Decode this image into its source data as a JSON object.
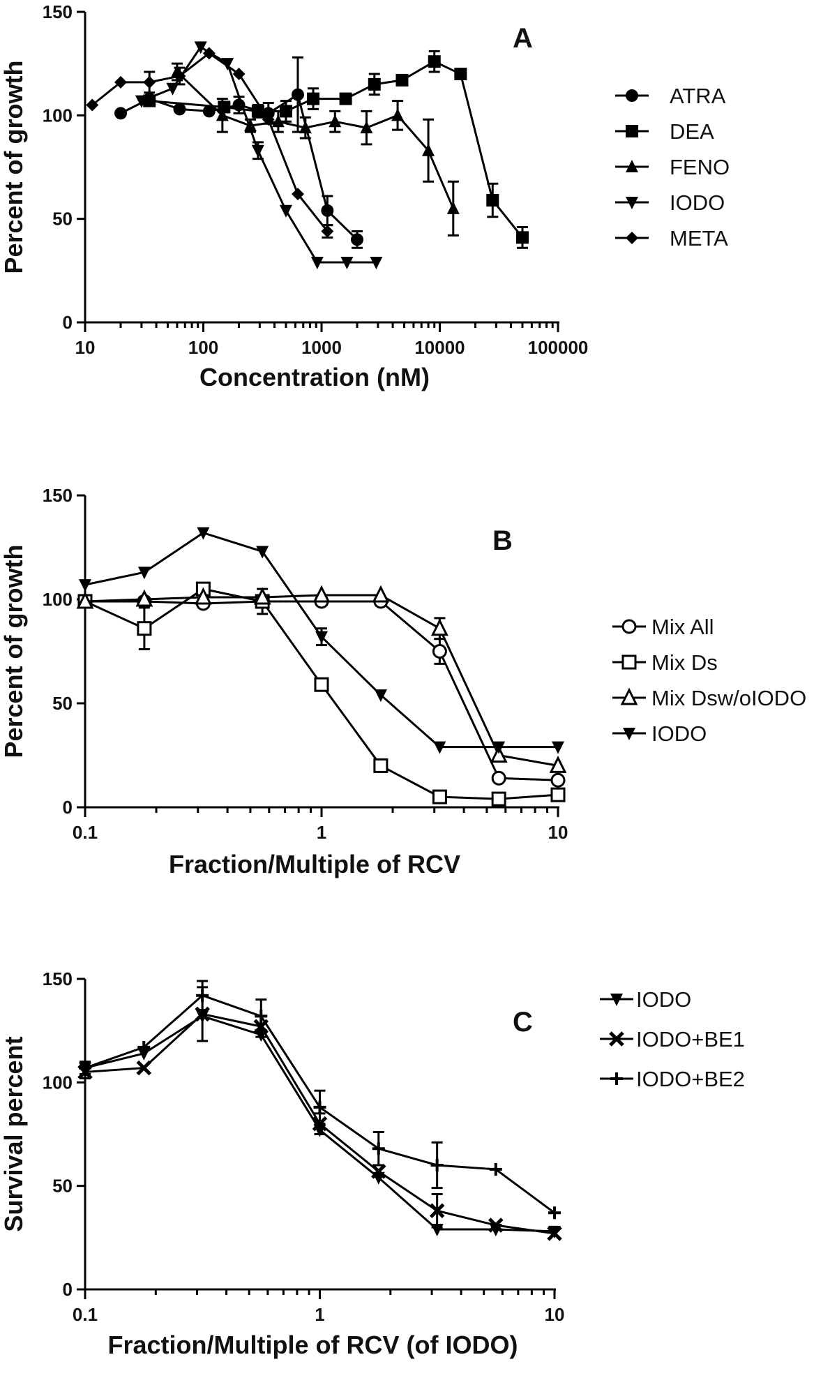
{
  "chart_data": [
    {
      "panel": "A",
      "type": "line",
      "xscale": "log",
      "xlabel": "Concentration (nM)",
      "ylabel": "Percent of growth",
      "xlim": [
        10,
        100000
      ],
      "ylim": [
        0,
        150
      ],
      "xticks": [
        10,
        100,
        1000,
        10000,
        100000
      ],
      "xtick_labels": [
        "10",
        "100",
        "1000",
        "10000",
        "100000"
      ],
      "yticks": [
        0,
        50,
        100,
        150
      ],
      "ytick_labels": [
        "0",
        "50",
        "100",
        "150"
      ],
      "grid": false,
      "legend_position": "right",
      "series": [
        {
          "name": "ATRA",
          "marker": "circle-filled",
          "x": [
            20,
            35,
            63,
            112,
            200,
            355,
            630,
            1120,
            2000
          ],
          "y": [
            101,
            108,
            103,
            102,
            105,
            101,
            110,
            54,
            40
          ],
          "err": [
            0,
            0,
            0,
            0,
            4,
            5,
            18,
            7,
            4
          ]
        },
        {
          "name": "DEA",
          "marker": "square-filled",
          "x": [
            35,
            150,
            290,
            500,
            850,
            1600,
            2800,
            4800,
            9000,
            15000,
            28000,
            50000
          ],
          "y": [
            107,
            104,
            102,
            102,
            108,
            108,
            115,
            117,
            126,
            120,
            59,
            41
          ],
          "err": [
            0,
            0,
            3,
            5,
            5,
            0,
            5,
            0,
            5,
            0,
            8,
            5
          ]
        },
        {
          "name": "FENO",
          "marker": "triangle-up-filled",
          "x": [
            60,
            145,
            250,
            430,
            730,
            1300,
            2400,
            4400,
            8000,
            13000
          ],
          "y": [
            121,
            100,
            95,
            97,
            94,
            97,
            94,
            100,
            83,
            55
          ],
          "err": [
            4,
            8,
            3,
            5,
            5,
            5,
            8,
            7,
            15,
            13
          ]
        },
        {
          "name": "IODO",
          "marker": "triangle-down-filled",
          "x": [
            30,
            55,
            95,
            160,
            290,
            500,
            920,
            1640,
            2900
          ],
          "y": [
            107,
            113,
            133,
            125,
            83,
            54,
            29,
            29,
            29
          ],
          "err": [
            0,
            0,
            0,
            0,
            4,
            0,
            0,
            0,
            0
          ]
        },
        {
          "name": "META",
          "marker": "diamond-filled",
          "x": [
            11.5,
            20,
            35,
            63,
            112,
            200,
            355,
            630,
            1120
          ],
          "y": [
            105,
            116,
            116,
            119,
            130,
            120,
            98,
            62,
            44
          ],
          "err": [
            0,
            0,
            5,
            4,
            0,
            0,
            0,
            0,
            3
          ]
        }
      ]
    },
    {
      "panel": "B",
      "type": "line",
      "xscale": "log",
      "xlabel": "Fraction/Multiple of RCV",
      "ylabel": "Percent of growth",
      "xlim": [
        0.1,
        10
      ],
      "ylim": [
        0,
        150
      ],
      "xticks": [
        0.1,
        1,
        10
      ],
      "xtick_labels": [
        "0.1",
        "1",
        "10"
      ],
      "yticks": [
        0,
        50,
        100,
        150
      ],
      "ytick_labels": [
        "0",
        "50",
        "100",
        "150"
      ],
      "grid": false,
      "legend_position": "right",
      "series": [
        {
          "name": "Mix All",
          "marker": "circle-open",
          "x": [
            0.1,
            0.178,
            0.316,
            0.562,
            1.0,
            1.78,
            3.16,
            5.62,
            10
          ],
          "y": [
            99,
            99,
            98,
            99,
            99,
            99,
            75,
            14,
            13
          ],
          "err": [
            0,
            0,
            0,
            0,
            0,
            0,
            6,
            0,
            0
          ]
        },
        {
          "name": "Mix Ds",
          "marker": "square-open",
          "x": [
            0.1,
            0.178,
            0.316,
            0.562,
            1.0,
            1.78,
            3.16,
            5.62,
            10
          ],
          "y": [
            99,
            86,
            105,
            99,
            59,
            20,
            5,
            4,
            6
          ],
          "err": [
            0,
            10,
            0,
            6,
            0,
            0,
            0,
            0,
            0
          ]
        },
        {
          "name": "Mix Dsw/oIODO",
          "marker": "triangle-up-open",
          "x": [
            0.1,
            0.178,
            0.316,
            0.562,
            1.0,
            1.78,
            3.16,
            5.62,
            10
          ],
          "y": [
            99,
            100,
            101,
            101,
            102,
            102,
            86,
            25,
            20
          ],
          "err": [
            0,
            0,
            0,
            0,
            0,
            0,
            5,
            0,
            0
          ]
        },
        {
          "name": "IODO",
          "marker": "triangle-down-filled",
          "x": [
            0.1,
            0.178,
            0.316,
            0.562,
            1.0,
            1.78,
            3.16,
            5.62,
            10
          ],
          "y": [
            107,
            113,
            132,
            123,
            82,
            54,
            29,
            29,
            29
          ],
          "err": [
            0,
            0,
            0,
            0,
            4,
            0,
            0,
            0,
            0
          ]
        }
      ]
    },
    {
      "panel": "C",
      "type": "line",
      "xscale": "log",
      "xlabel": "Fraction/Multiple of RCV (of IODO)",
      "ylabel": "Survival percent",
      "xlim": [
        0.1,
        10
      ],
      "ylim": [
        0,
        150
      ],
      "xticks": [
        0.1,
        1,
        10
      ],
      "xtick_labels": [
        "0.1",
        "1",
        "10"
      ],
      "yticks": [
        0,
        50,
        100,
        150
      ],
      "ytick_labels": [
        "0",
        "50",
        "100",
        "150"
      ],
      "grid": false,
      "legend_position": "top-right",
      "series": [
        {
          "name": "IODO",
          "marker": "triangle-down-filled",
          "x": [
            0.1,
            0.178,
            0.316,
            0.562,
            1.0,
            1.78,
            3.16,
            5.62,
            10
          ],
          "y": [
            107,
            114,
            132,
            123,
            77,
            54,
            29,
            29,
            28
          ],
          "err": [
            0,
            0,
            0,
            0,
            0,
            0,
            0,
            0,
            0
          ]
        },
        {
          "name": "IODO+BE1",
          "marker": "x-cross",
          "x": [
            0.1,
            0.178,
            0.316,
            0.562,
            1.0,
            1.78,
            3.16,
            5.62,
            10
          ],
          "y": [
            105,
            107,
            133,
            127,
            80,
            57,
            38,
            31,
            27
          ],
          "err": [
            3,
            0,
            13,
            5,
            5,
            0,
            8,
            0,
            0
          ]
        },
        {
          "name": "IODO+BE2",
          "marker": "plus",
          "x": [
            0.1,
            0.178,
            0.316,
            0.562,
            1.0,
            1.78,
            3.16,
            5.62,
            10
          ],
          "y": [
            107,
            117,
            142,
            132,
            88,
            68,
            60,
            58,
            37
          ],
          "err": [
            3,
            0,
            7,
            8,
            8,
            8,
            11,
            0,
            0
          ]
        }
      ]
    }
  ],
  "panel_labels": [
    "A",
    "B",
    "C"
  ]
}
